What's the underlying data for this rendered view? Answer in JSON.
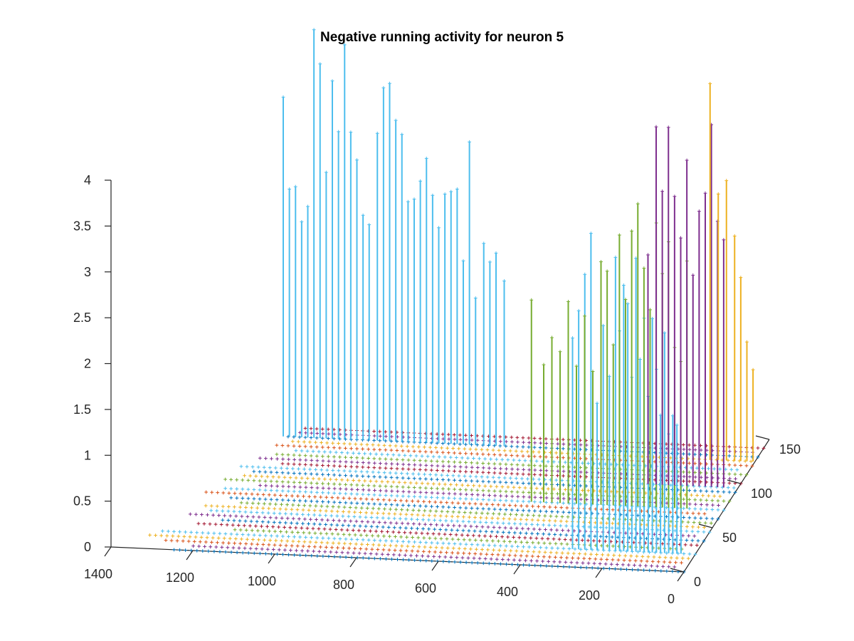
{
  "chart_data": {
    "type": "scatter",
    "subtype": "3d-stem",
    "title": "Negative running activity for neuron 5",
    "xlabel": "",
    "ylabel": "",
    "zlabel": "",
    "xlim": [
      0,
      1400
    ],
    "ylim": [
      0,
      150
    ],
    "zlim": [
      0,
      4
    ],
    "x_ticks": [
      "0",
      "200",
      "400",
      "600",
      "800",
      "1000",
      "1200",
      "1400"
    ],
    "y_ticks": [
      "0",
      "50",
      "100",
      "150"
    ],
    "z_ticks": [
      "0",
      "0.5",
      "1",
      "1.5",
      "2",
      "2.5",
      "3",
      "3.5",
      "4"
    ],
    "grid": false,
    "legend": "none",
    "baseline_marker": "+",
    "series": [
      {
        "color": "#4DBEEE",
        "y": 130,
        "stems": [
          [
            1160,
            3.7
          ],
          [
            1145,
            2.7
          ],
          [
            1130,
            2.73
          ],
          [
            1115,
            2.35
          ],
          [
            1100,
            2.52
          ],
          [
            1085,
            4.45
          ],
          [
            1070,
            4.08
          ],
          [
            1055,
            2.9
          ],
          [
            1040,
            3.9
          ],
          [
            1025,
            3.35
          ],
          [
            1010,
            4.3
          ],
          [
            995,
            3.35
          ],
          [
            980,
            3.05
          ],
          [
            965,
            2.45
          ],
          [
            950,
            2.35
          ],
          [
            930,
            3.35
          ],
          [
            915,
            3.85
          ],
          [
            900,
            3.9
          ],
          [
            885,
            3.5
          ],
          [
            870,
            3.35
          ],
          [
            855,
            2.62
          ],
          [
            840,
            2.65
          ],
          [
            825,
            2.85
          ],
          [
            810,
            3.1
          ],
          [
            795,
            2.7
          ],
          [
            780,
            2.35
          ],
          [
            765,
            2.72
          ],
          [
            750,
            2.75
          ],
          [
            735,
            2.78
          ],
          [
            720,
            2.0
          ],
          [
            705,
            3.3
          ],
          [
            690,
            1.6
          ],
          [
            670,
            2.2
          ],
          [
            655,
            2.0
          ],
          [
            640,
            2.1
          ],
          [
            620,
            1.8
          ]
        ]
      },
      {
        "color": "#4DBEEE",
        "y": 20,
        "stems": [
          [
            300,
            2.3
          ],
          [
            285,
            2.6
          ],
          [
            270,
            3.0
          ],
          [
            255,
            3.45
          ],
          [
            240,
            1.6
          ],
          [
            225,
            2.45
          ],
          [
            210,
            1.9
          ],
          [
            195,
            3.2
          ],
          [
            185,
            2.4
          ],
          [
            175,
            2.9
          ],
          [
            165,
            2.7
          ],
          [
            155,
            1.9
          ],
          [
            145,
            3.2
          ],
          [
            135,
            2.1
          ],
          [
            125,
            2.55
          ],
          [
            115,
            1.7
          ],
          [
            105,
            2.55
          ],
          [
            95,
            2.0
          ],
          [
            85,
            1.5
          ],
          [
            75,
            2.4
          ],
          [
            65,
            1.3
          ],
          [
            55,
            1.5
          ],
          [
            45,
            1.4
          ],
          [
            35,
            1.05
          ]
        ]
      },
      {
        "color": "#77AC30",
        "y": 70,
        "stems": [
          [
            470,
            2.2
          ],
          [
            440,
            1.5
          ],
          [
            420,
            1.8
          ],
          [
            400,
            1.65
          ],
          [
            380,
            2.2
          ],
          [
            360,
            1.5
          ],
          [
            340,
            2.05
          ],
          [
            320,
            1.45
          ],
          [
            300,
            2.65
          ],
          [
            285,
            2.55
          ],
          [
            270,
            1.75
          ],
          [
            255,
            2.95
          ],
          [
            240,
            2.25
          ],
          [
            225,
            3.0
          ],
          [
            210,
            3.3
          ],
          [
            195,
            2.6
          ],
          [
            180,
            2.15
          ],
          [
            165,
            3.1
          ],
          [
            150,
            2.55
          ],
          [
            135,
            2.9
          ],
          [
            120,
            1.75
          ],
          [
            105,
            1.6
          ],
          [
            90,
            2.7
          ]
        ]
      },
      {
        "color": "#7E2F8E",
        "y": 95,
        "stems": [
          [
            220,
            2.5
          ],
          [
            200,
            3.9
          ],
          [
            185,
            3.2
          ],
          [
            170,
            3.9
          ],
          [
            155,
            3.15
          ],
          [
            140,
            2.7
          ],
          [
            125,
            3.55
          ],
          [
            110,
            2.3
          ],
          [
            95,
            3.0
          ],
          [
            80,
            3.2
          ],
          [
            65,
            3.95
          ],
          [
            50,
            2.9
          ],
          [
            35,
            2.7
          ]
        ]
      },
      {
        "color": "#EDB120",
        "y": 125,
        "stems": [
          [
            110,
            4.1
          ],
          [
            90,
            2.9
          ],
          [
            70,
            3.05
          ],
          [
            50,
            2.45
          ],
          [
            35,
            2.0
          ],
          [
            20,
            1.3
          ],
          [
            5,
            1.0
          ]
        ]
      }
    ],
    "baseline_rows": [
      {
        "y": 0,
        "color": "#0072BD",
        "x_from": 0,
        "x_to": 1250
      },
      {
        "y": 5,
        "color": "#7E2F8E",
        "x_from": 30,
        "x_to": 1210
      },
      {
        "y": 10,
        "color": "#D95319",
        "x_from": 20,
        "x_to": 1290
      },
      {
        "y": 15,
        "color": "#EDB120",
        "x_from": 10,
        "x_to": 1330
      },
      {
        "y": 20,
        "color": "#4DBEEE",
        "x_from": 0,
        "x_to": 1310
      },
      {
        "y": 25,
        "color": "#77AC30",
        "x_from": 40,
        "x_to": 1140
      },
      {
        "y": 30,
        "color": "#A2142F",
        "x_from": 10,
        "x_to": 1230
      },
      {
        "y": 35,
        "color": "#0072BD",
        "x_from": 0,
        "x_to": 1180
      },
      {
        "y": 40,
        "color": "#7E2F8E",
        "x_from": 30,
        "x_to": 1270
      },
      {
        "y": 45,
        "color": "#4DBEEE",
        "x_from": 0,
        "x_to": 1220
      },
      {
        "y": 50,
        "color": "#EDB120",
        "x_from": 20,
        "x_to": 1250
      },
      {
        "y": 55,
        "color": "#77AC30",
        "x_from": 10,
        "x_to": 1160
      },
      {
        "y": 60,
        "color": "#0072BD",
        "x_from": 0,
        "x_to": 1200
      },
      {
        "y": 65,
        "color": "#D95319",
        "x_from": 40,
        "x_to": 1260
      },
      {
        "y": 70,
        "color": "#4DBEEE",
        "x_from": 0,
        "x_to": 1230
      },
      {
        "y": 75,
        "color": "#7E2F8E",
        "x_from": 20,
        "x_to": 1150
      },
      {
        "y": 80,
        "color": "#77AC30",
        "x_from": 0,
        "x_to": 1240
      },
      {
        "y": 85,
        "color": "#EDB120",
        "x_from": 30,
        "x_to": 1200
      },
      {
        "y": 90,
        "color": "#0072BD",
        "x_from": 0,
        "x_to": 1180
      },
      {
        "y": 95,
        "color": "#4DBEEE",
        "x_from": 10,
        "x_to": 1220
      },
      {
        "y": 100,
        "color": "#A2142F",
        "x_from": 0,
        "x_to": 1130
      },
      {
        "y": 105,
        "color": "#7E2F8E",
        "x_from": 20,
        "x_to": 1190
      },
      {
        "y": 110,
        "color": "#77AC30",
        "x_from": 0,
        "x_to": 1160
      },
      {
        "y": 115,
        "color": "#4DBEEE",
        "x_from": 30,
        "x_to": 1120
      },
      {
        "y": 120,
        "color": "#D95319",
        "x_from": 0,
        "x_to": 1170
      },
      {
        "y": 125,
        "color": "#EDB120",
        "x_from": 10,
        "x_to": 1140
      },
      {
        "y": 130,
        "color": "#0072BD",
        "x_from": 0,
        "x_to": 1160
      },
      {
        "y": 135,
        "color": "#7E2F8E",
        "x_from": 20,
        "x_to": 1130
      },
      {
        "y": 140,
        "color": "#A2142F",
        "x_from": 0,
        "x_to": 1120
      }
    ]
  }
}
